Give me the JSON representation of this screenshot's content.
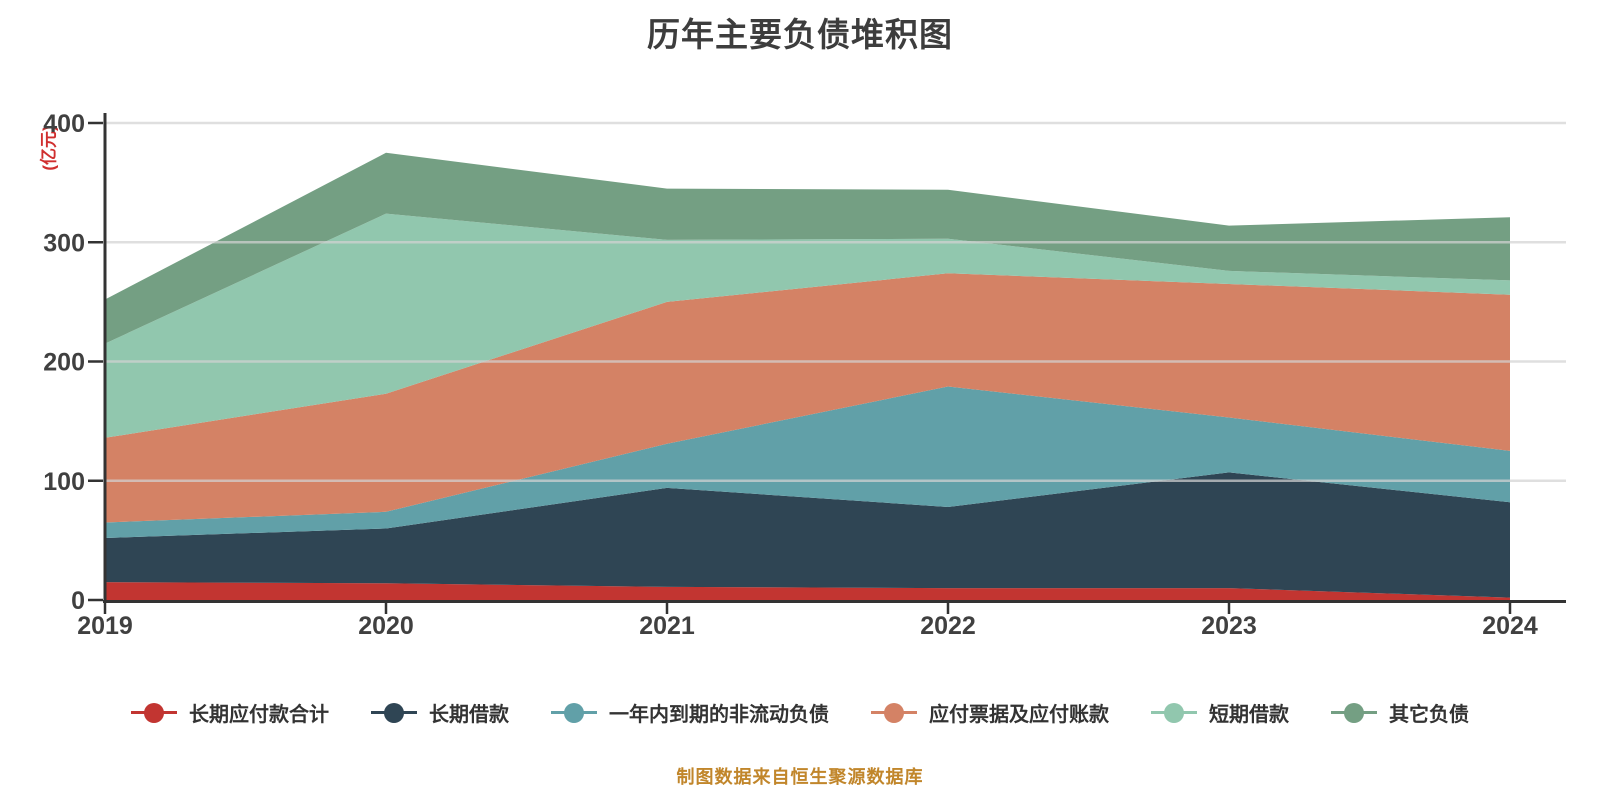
{
  "title": "历年主要负债堆积图",
  "y_axis_unit": "(亿元)",
  "source_note": "制图数据来自恒生聚源数据库",
  "colors": {
    "title_text": "#3d3d3d",
    "axis_line": "#333333",
    "axis_label": "#404040",
    "unit_label": "#d02f2f",
    "gridline": "#d3d3d3",
    "source_text": "#c1862b",
    "background": "#ffffff"
  },
  "chart_data": {
    "type": "area",
    "stacked": true,
    "title": "历年主要负债堆积图",
    "ylabel": "(亿元)",
    "xlabel": "",
    "x": [
      "2019",
      "2020",
      "2021",
      "2022",
      "2023",
      "2024"
    ],
    "series": [
      {
        "name": "长期应付款合计",
        "color": "#c23531",
        "values": [
          15,
          14,
          11,
          10,
          10,
          2
        ]
      },
      {
        "name": "长期借款",
        "color": "#2f4554",
        "values": [
          37,
          46,
          83,
          68,
          97,
          80
        ]
      },
      {
        "name": "一年内到期的非流动负债",
        "color": "#61a0a8",
        "values": [
          13,
          14,
          37,
          101,
          46,
          43
        ]
      },
      {
        "name": "应付票据及应付账款",
        "color": "#d48265",
        "values": [
          71,
          99,
          119,
          95,
          112,
          131
        ]
      },
      {
        "name": "短期借款",
        "color": "#91c7ae",
        "values": [
          79,
          151,
          52,
          29,
          11,
          12
        ]
      },
      {
        "name": "其它负债",
        "color": "#749f83",
        "values": [
          37,
          51,
          43,
          41,
          38,
          53
        ]
      }
    ],
    "stack_totals": [
      252,
      375,
      345,
      344,
      314,
      321
    ],
    "ylim": [
      0,
      400
    ],
    "y_ticks": [
      0,
      100,
      200,
      300,
      400
    ],
    "grid": true,
    "legend_position": "bottom"
  }
}
